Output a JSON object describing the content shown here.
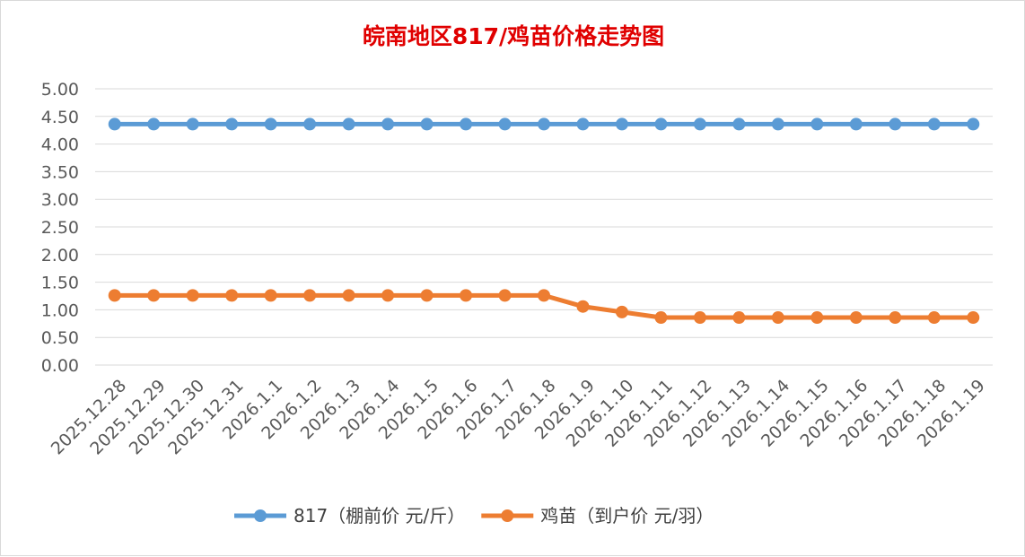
{
  "chart_data": {
    "type": "line",
    "title": "皖南地区817/鸡苗价格走势图",
    "xlabel": "",
    "ylabel": "",
    "ylim": [
      0,
      5
    ],
    "yticks": [
      "0.00",
      "0.50",
      "1.00",
      "1.50",
      "2.00",
      "2.50",
      "3.00",
      "3.50",
      "4.00",
      "4.50",
      "5.00"
    ],
    "grid": true,
    "legend_position": "bottom",
    "categories": [
      "2025.12.28",
      "2025.12.29",
      "2025.12.30",
      "2025.12.31",
      "2026.1.1",
      "2026.1.2",
      "2026.1.3",
      "2026.1.4",
      "2026.1.5",
      "2026.1.6",
      "2026.1.7",
      "2026.1.8",
      "2026.1.9",
      "2026.1.10",
      "2026.1.11",
      "2026.1.12",
      "2026.1.13",
      "2026.1.14",
      "2026.1.15",
      "2026.1.16",
      "2026.1.17",
      "2026.1.18",
      "2026.1.19"
    ],
    "series": [
      {
        "name": "817（棚前价 元/斤）",
        "color": "#5b9bd5",
        "values": [
          4.36,
          4.36,
          4.36,
          4.36,
          4.36,
          4.36,
          4.36,
          4.36,
          4.36,
          4.36,
          4.36,
          4.36,
          4.36,
          4.36,
          4.36,
          4.36,
          4.36,
          4.36,
          4.36,
          4.36,
          4.36,
          4.36,
          4.36
        ]
      },
      {
        "name": "鸡苗（到户价 元/羽）",
        "color": "#ed7d31",
        "values": [
          1.26,
          1.26,
          1.26,
          1.26,
          1.26,
          1.26,
          1.26,
          1.26,
          1.26,
          1.26,
          1.26,
          1.26,
          1.06,
          0.96,
          0.86,
          0.86,
          0.86,
          0.86,
          0.86,
          0.86,
          0.86,
          0.86,
          0.86
        ]
      }
    ]
  }
}
